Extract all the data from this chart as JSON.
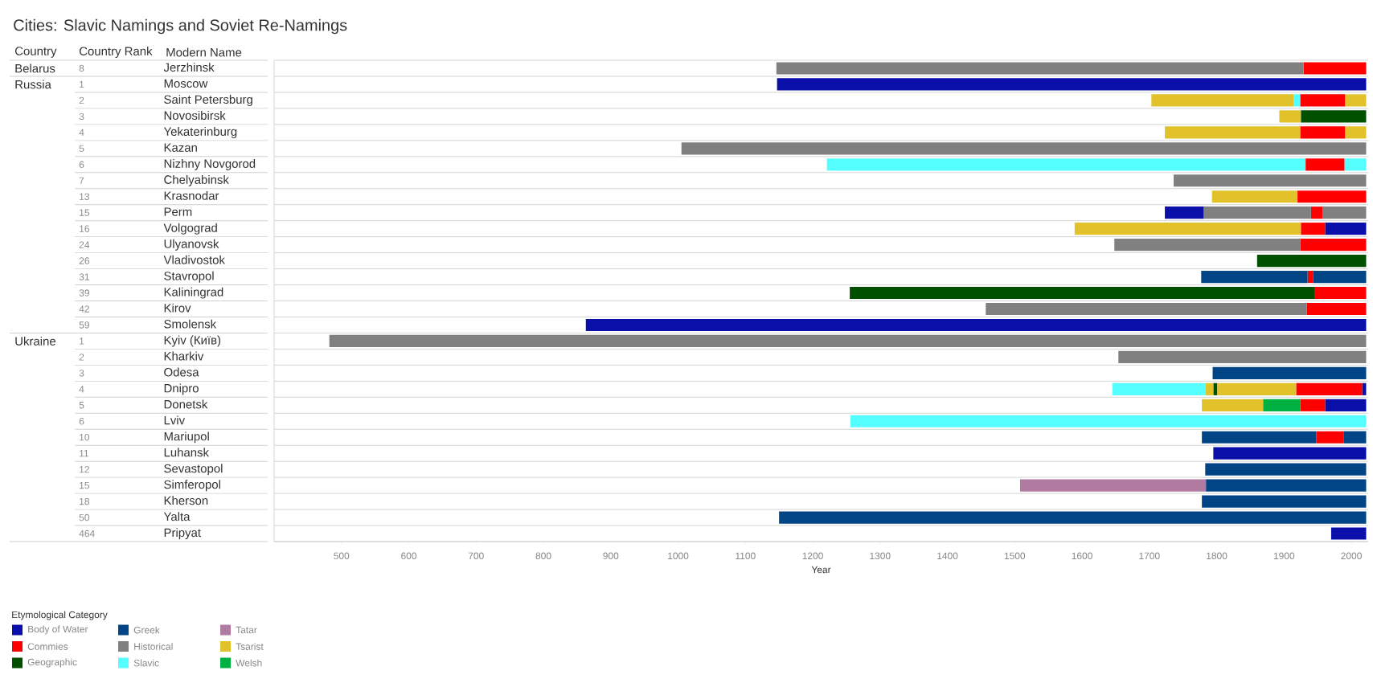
{
  "chart_data": {
    "type": "bar",
    "orientation": "horizontal",
    "title": "Cities: Slavic Namings and Soviet Re-Namings",
    "xlabel": "Year",
    "legend_title": "Etymological Category",
    "legend": "bottom left",
    "grid": "y",
    "categories": [
      "Jerzhinsk",
      "Moscow",
      "Saint Petersburg",
      "Novosibirsk",
      "Yekaterinburg",
      "Kazan",
      "Nizhny Novgorod",
      "Chelyabinsk",
      "Krasnodar",
      "Perm",
      "Volgograd",
      "Ulyanovsk",
      "Vladivostok",
      "Stavropol",
      "Kaliningrad",
      "Kirov",
      "Smolensk",
      "Kyiv (Київ)",
      "Kharkiv",
      "Odesa",
      "Dnipro",
      "Donetsk",
      "Lviv",
      "Mariupol",
      "Luhansk",
      "Sevastopol",
      "Simferopol",
      "Kherson",
      "Yalta",
      "Pripyat"
    ],
    "xlim": [
      400,
      2025
    ],
    "xticks": [
      500,
      600,
      700,
      800,
      900,
      1000,
      1100,
      1200,
      1300,
      1400,
      1500,
      1600,
      1700,
      1800,
      1900,
      2000
    ],
    "annotations": [
      "Country",
      "Country Rank",
      "Modern Name",
      "Belarus",
      "Russia",
      "Ukraine",
      "8",
      "1",
      "2",
      "3",
      "4",
      "5",
      "6",
      "7",
      "13",
      "15",
      "16",
      "24",
      "26",
      "31",
      "39",
      "42",
      "59",
      "1",
      "2",
      "3",
      "4",
      "5",
      "6",
      "10",
      "11",
      "12",
      "15",
      "18",
      "50",
      "464"
    ],
    "series": [
      {
        "name": "Body of Water",
        "color": "#0a0faa",
        "base": [
          null,
          1147,
          null,
          null,
          null,
          null,
          null,
          null,
          null,
          1723,
          1961,
          null,
          null,
          null,
          null,
          null,
          863,
          null,
          null,
          null,
          2016,
          1961,
          null,
          null,
          1795,
          null,
          null,
          null,
          null,
          1970
        ],
        "values": [
          null,
          875,
          null,
          null,
          null,
          null,
          null,
          null,
          null,
          58,
          61,
          null,
          null,
          null,
          null,
          null,
          1159,
          null,
          null,
          null,
          6,
          61,
          null,
          null,
          227,
          null,
          null,
          null,
          null,
          52
        ]
      },
      {
        "name": "Commies",
        "color": "#ff0000",
        "base": [
          1929,
          null,
          1924,
          null,
          1924,
          null,
          1932,
          null,
          1920,
          1940,
          1925,
          1924,
          null,
          1935,
          1946,
          1934,
          null,
          null,
          null,
          null,
          1918,
          1924,
          null,
          1948,
          null,
          null,
          null,
          null,
          null,
          null
        ],
        "values": [
          93,
          null,
          67,
          null,
          67,
          null,
          58,
          null,
          102,
          17,
          36,
          98,
          null,
          8,
          76,
          88,
          null,
          null,
          null,
          null,
          98,
          37,
          null,
          41,
          null,
          null,
          null,
          null,
          null,
          null
        ]
      },
      {
        "name": "Geographic",
        "color": "#005000",
        "base": [
          null,
          null,
          null,
          1925,
          null,
          null,
          null,
          null,
          null,
          null,
          null,
          null,
          1860,
          null,
          1255,
          null,
          null,
          null,
          null,
          null,
          1795,
          null,
          null,
          null,
          null,
          null,
          null,
          null,
          null,
          null
        ],
        "values": [
          null,
          null,
          null,
          97,
          null,
          null,
          null,
          null,
          null,
          null,
          null,
          null,
          162,
          null,
          691,
          null,
          null,
          null,
          null,
          null,
          6,
          null,
          null,
          null,
          null,
          null,
          null,
          null,
          null,
          null
        ]
      },
      {
        "name": "Greek",
        "color": "#024586",
        "base": [
          null,
          null,
          null,
          null,
          null,
          null,
          null,
          null,
          null,
          null,
          null,
          null,
          null,
          1777,
          null,
          null,
          null,
          null,
          null,
          1794,
          null,
          null,
          null,
          1778,
          null,
          1783,
          1784,
          1778,
          1150,
          null
        ],
        "values": [
          null,
          null,
          null,
          null,
          null,
          null,
          null,
          null,
          null,
          null,
          null,
          null,
          null,
          158,
          null,
          null,
          null,
          null,
          null,
          228,
          null,
          null,
          null,
          170,
          null,
          239,
          238,
          244,
          872,
          null
        ]
      },
      {
        "name": "Historical",
        "color": "#808080",
        "base": [
          1146,
          null,
          null,
          null,
          null,
          1005,
          null,
          1736,
          null,
          1781,
          null,
          1648,
          null,
          null,
          null,
          1457,
          null,
          482,
          1654,
          null,
          null,
          null,
          null,
          null,
          null,
          null,
          null,
          null,
          null,
          null
        ],
        "values": [
          783,
          null,
          null,
          null,
          null,
          1017,
          null,
          286,
          null,
          159,
          null,
          276,
          null,
          null,
          null,
          477,
          null,
          1540,
          368,
          null,
          null,
          null,
          null,
          null,
          null,
          null,
          null,
          null,
          null,
          null
        ]
      },
      {
        "name": "Slavic",
        "color": "#55ffff",
        "base": [
          null,
          null,
          1914,
          null,
          null,
          null,
          1221,
          null,
          null,
          null,
          null,
          null,
          null,
          null,
          null,
          null,
          null,
          null,
          null,
          null,
          1645,
          null,
          1256,
          null,
          null,
          null,
          null,
          null,
          null,
          null
        ],
        "values": [
          null,
          null,
          10,
          null,
          null,
          null,
          711,
          null,
          null,
          null,
          null,
          null,
          null,
          null,
          null,
          null,
          null,
          null,
          null,
          null,
          138,
          null,
          766,
          null,
          null,
          null,
          null,
          null,
          null,
          null
        ]
      },
      {
        "name": "Tatar",
        "color": "#b07aa1",
        "base": [
          null,
          null,
          null,
          null,
          null,
          null,
          null,
          null,
          null,
          null,
          null,
          null,
          null,
          null,
          null,
          null,
          null,
          null,
          null,
          null,
          null,
          null,
          null,
          null,
          null,
          null,
          1508,
          null,
          null,
          null
        ],
        "values": [
          null,
          null,
          null,
          null,
          null,
          null,
          null,
          null,
          null,
          null,
          null,
          null,
          null,
          null,
          null,
          null,
          null,
          null,
          null,
          null,
          null,
          null,
          null,
          null,
          null,
          null,
          276,
          null,
          null,
          null
        ]
      },
      {
        "name": "Tsarist",
        "color": "#e2c22a",
        "base": [
          null,
          null,
          1703,
          1893,
          1723,
          null,
          null,
          null,
          1793,
          null,
          1589,
          null,
          null,
          null,
          null,
          null,
          null,
          null,
          null,
          null,
          1783,
          1778,
          null,
          null,
          null,
          null,
          null,
          null,
          null,
          null
        ],
        "values": [
          null,
          null,
          211,
          32,
          201,
          null,
          null,
          null,
          127,
          null,
          336,
          null,
          null,
          null,
          null,
          null,
          null,
          null,
          null,
          null,
          12,
          91,
          null,
          null,
          null,
          null,
          null,
          null,
          null,
          null
        ]
      },
      {
        "name": "Welsh",
        "color": "#00b040",
        "base": [
          null,
          null,
          null,
          null,
          null,
          null,
          null,
          null,
          null,
          null,
          null,
          null,
          null,
          null,
          null,
          null,
          null,
          null,
          null,
          null,
          null,
          1869,
          null,
          null,
          null,
          null,
          null,
          null,
          null,
          null
        ],
        "values": [
          null,
          null,
          null,
          null,
          null,
          null,
          null,
          null,
          null,
          null,
          null,
          null,
          null,
          null,
          null,
          null,
          null,
          null,
          null,
          null,
          null,
          55,
          null,
          null,
          null,
          null,
          null,
          null,
          null,
          null
        ]
      },
      {
        "color": "#e2c22a",
        "base": [
          null,
          null,
          1991,
          null,
          1991,
          null,
          null,
          null,
          null,
          null,
          null,
          null,
          null,
          null,
          null,
          null,
          null,
          null,
          null,
          null,
          1801,
          null,
          null,
          null,
          null,
          null,
          null,
          null,
          null,
          null
        ],
        "values": [
          null,
          null,
          31,
          null,
          31,
          null,
          null,
          null,
          null,
          null,
          null,
          null,
          null,
          null,
          null,
          null,
          null,
          null,
          null,
          null,
          117,
          null,
          null,
          null,
          null,
          null,
          null,
          null,
          null,
          null
        ]
      },
      {
        "color": "#55ffff",
        "base": [
          null,
          null,
          null,
          null,
          null,
          null,
          1990,
          null,
          null,
          null,
          null,
          null,
          null,
          null,
          null,
          null,
          null,
          null,
          null,
          null,
          null,
          null,
          null,
          null,
          null,
          null,
          null,
          null,
          null,
          null
        ],
        "values": [
          null,
          null,
          null,
          null,
          null,
          null,
          32,
          null,
          null,
          null,
          null,
          null,
          null,
          null,
          null,
          null,
          null,
          null,
          null,
          null,
          null,
          null,
          null,
          null,
          null,
          null,
          null,
          null,
          null,
          null
        ]
      },
      {
        "color": "#808080",
        "base": [
          null,
          null,
          null,
          null,
          null,
          null,
          null,
          null,
          null,
          1957,
          null,
          null,
          null,
          null,
          null,
          null,
          null,
          null,
          null,
          null,
          null,
          null,
          null,
          null,
          null,
          null,
          null,
          null,
          null,
          null
        ],
        "values": [
          null,
          null,
          null,
          null,
          null,
          null,
          null,
          null,
          null,
          65,
          null,
          null,
          null,
          null,
          null,
          null,
          null,
          null,
          null,
          null,
          null,
          null,
          null,
          null,
          null,
          null,
          null,
          null,
          null,
          null
        ]
      },
      {
        "color": "#024586",
        "base": [
          null,
          null,
          null,
          null,
          null,
          null,
          null,
          null,
          null,
          null,
          null,
          null,
          null,
          1943,
          null,
          null,
          null,
          null,
          null,
          null,
          null,
          null,
          null,
          1989,
          null,
          null,
          null,
          null,
          null,
          null
        ],
        "values": [
          null,
          null,
          null,
          null,
          null,
          null,
          null,
          null,
          null,
          null,
          null,
          null,
          null,
          79,
          null,
          null,
          null,
          null,
          null,
          null,
          null,
          null,
          null,
          33,
          null,
          null,
          null,
          null,
          null,
          null
        ]
      }
    ]
  }
}
